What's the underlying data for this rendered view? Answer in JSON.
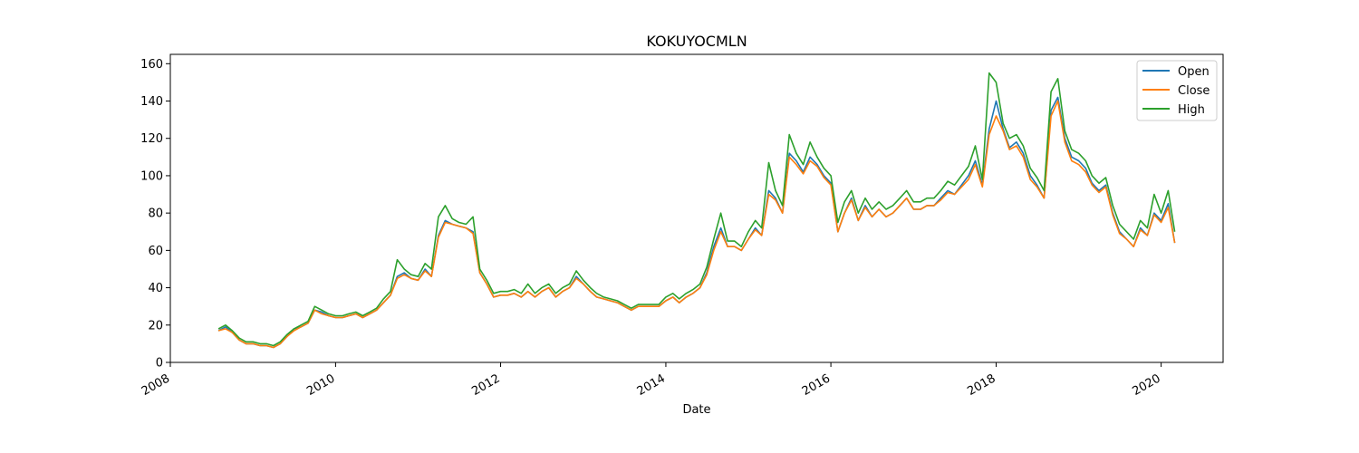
{
  "chart_data": {
    "type": "line",
    "title": "KOKUYOCMLN",
    "xlabel": "Date",
    "ylabel": "",
    "xlim": [
      "2008-01-01",
      "2020-10-01"
    ],
    "ylim": [
      0,
      165
    ],
    "x_ticks": [
      "2008",
      "2010",
      "2012",
      "2014",
      "2016",
      "2018",
      "2020"
    ],
    "y_ticks": [
      "0",
      "20",
      "40",
      "60",
      "80",
      "100",
      "120",
      "140",
      "160"
    ],
    "grid": false,
    "legend": {
      "position": "top-right",
      "entries": [
        "Open",
        "Close",
        "High"
      ]
    },
    "colors": {
      "Open": "#1f77b4",
      "Close": "#ff7f0e",
      "High": "#2ca02c"
    },
    "x": [
      "2008-08-01",
      "2008-09-01",
      "2008-10-01",
      "2008-11-01",
      "2008-12-01",
      "2009-01-01",
      "2009-02-01",
      "2009-03-01",
      "2009-04-01",
      "2009-05-01",
      "2009-06-01",
      "2009-07-01",
      "2009-08-01",
      "2009-09-01",
      "2009-10-01",
      "2009-11-01",
      "2009-12-01",
      "2010-01-01",
      "2010-02-01",
      "2010-03-01",
      "2010-04-01",
      "2010-05-01",
      "2010-06-01",
      "2010-07-01",
      "2010-08-01",
      "2010-09-01",
      "2010-10-01",
      "2010-11-01",
      "2010-12-01",
      "2011-01-01",
      "2011-02-01",
      "2011-03-01",
      "2011-04-01",
      "2011-05-01",
      "2011-06-01",
      "2011-07-01",
      "2011-08-01",
      "2011-09-01",
      "2011-10-01",
      "2011-11-01",
      "2011-12-01",
      "2012-01-01",
      "2012-02-01",
      "2012-03-01",
      "2012-04-01",
      "2012-05-01",
      "2012-06-01",
      "2012-07-01",
      "2012-08-01",
      "2012-09-01",
      "2012-10-01",
      "2012-11-01",
      "2012-12-01",
      "2013-01-01",
      "2013-02-01",
      "2013-03-01",
      "2013-04-01",
      "2013-05-01",
      "2013-06-01",
      "2013-07-01",
      "2013-08-01",
      "2013-09-01",
      "2013-10-01",
      "2013-11-01",
      "2013-12-01",
      "2014-01-01",
      "2014-02-01",
      "2014-03-01",
      "2014-04-01",
      "2014-05-01",
      "2014-06-01",
      "2014-07-01",
      "2014-08-01",
      "2014-09-01",
      "2014-10-01",
      "2014-11-01",
      "2014-12-01",
      "2015-01-01",
      "2015-02-01",
      "2015-03-01",
      "2015-04-01",
      "2015-05-01",
      "2015-06-01",
      "2015-07-01",
      "2015-08-01",
      "2015-09-01",
      "2015-10-01",
      "2015-11-01",
      "2015-12-01",
      "2016-01-01",
      "2016-02-01",
      "2016-03-01",
      "2016-04-01",
      "2016-05-01",
      "2016-06-01",
      "2016-07-01",
      "2016-08-01",
      "2016-09-01",
      "2016-10-01",
      "2016-11-01",
      "2016-12-01",
      "2017-01-01",
      "2017-02-01",
      "2017-03-01",
      "2017-04-01",
      "2017-05-01",
      "2017-06-01",
      "2017-07-01",
      "2017-08-01",
      "2017-09-01",
      "2017-10-01",
      "2017-11-01",
      "2017-12-01",
      "2018-01-01",
      "2018-02-01",
      "2018-03-01",
      "2018-04-01",
      "2018-05-01",
      "2018-06-01",
      "2018-07-01",
      "2018-08-01",
      "2018-09-01",
      "2018-10-01",
      "2018-11-01",
      "2018-12-01",
      "2019-01-01",
      "2019-02-01",
      "2019-03-01",
      "2019-04-01",
      "2019-05-01",
      "2019-06-01",
      "2019-07-01",
      "2019-08-01",
      "2019-09-01",
      "2019-10-01",
      "2019-11-01",
      "2019-12-01",
      "2020-01-01",
      "2020-02-01",
      "2020-03-01"
    ],
    "series": [
      {
        "name": "Open",
        "values": [
          17,
          19,
          16,
          12,
          10,
          10,
          9,
          9,
          8,
          10,
          14,
          18,
          19,
          21,
          28,
          27,
          25,
          24,
          24,
          25,
          26,
          24,
          26,
          28,
          32,
          36,
          46,
          48,
          45,
          44,
          50,
          46,
          68,
          76,
          74,
          73,
          72,
          70,
          48,
          42,
          35,
          36,
          36,
          37,
          35,
          38,
          35,
          38,
          40,
          35,
          38,
          40,
          46,
          42,
          38,
          35,
          34,
          33,
          32,
          30,
          28,
          30,
          30,
          30,
          30,
          33,
          35,
          32,
          35,
          37,
          40,
          48,
          62,
          72,
          62,
          62,
          60,
          66,
          72,
          68,
          92,
          88,
          80,
          112,
          108,
          102,
          110,
          106,
          100,
          96,
          70,
          80,
          88,
          76,
          84,
          78,
          82,
          78,
          80,
          84,
          88,
          82,
          82,
          84,
          84,
          88,
          92,
          90,
          95,
          100,
          108,
          95,
          125,
          140,
          125,
          115,
          118,
          112,
          100,
          95,
          88,
          135,
          142,
          120,
          110,
          108,
          104,
          96,
          92,
          95,
          80,
          70,
          66,
          62,
          72,
          68,
          80,
          76,
          85,
          64
        ]
      },
      {
        "name": "Close",
        "values": [
          17,
          18,
          16,
          12,
          10,
          10,
          9,
          9,
          8,
          10,
          14,
          17,
          19,
          21,
          28,
          26,
          25,
          24,
          24,
          25,
          26,
          24,
          26,
          28,
          32,
          36,
          45,
          47,
          45,
          44,
          49,
          46,
          67,
          75,
          74,
          73,
          72,
          69,
          48,
          42,
          35,
          36,
          36,
          37,
          35,
          38,
          35,
          38,
          40,
          35,
          38,
          40,
          45,
          42,
          38,
          35,
          34,
          33,
          32,
          30,
          28,
          30,
          30,
          30,
          30,
          33,
          35,
          32,
          35,
          37,
          40,
          47,
          60,
          70,
          62,
          62,
          60,
          66,
          71,
          68,
          90,
          87,
          80,
          110,
          106,
          101,
          108,
          105,
          99,
          95,
          70,
          80,
          87,
          76,
          83,
          78,
          82,
          78,
          80,
          84,
          88,
          82,
          82,
          84,
          84,
          87,
          91,
          90,
          94,
          98,
          106,
          94,
          122,
          132,
          124,
          114,
          116,
          110,
          98,
          94,
          88,
          132,
          140,
          118,
          108,
          106,
          102,
          95,
          91,
          94,
          79,
          69,
          66,
          62,
          71,
          68,
          79,
          75,
          83,
          64
        ]
      },
      {
        "name": "High",
        "values": [
          18,
          20,
          17,
          13,
          11,
          11,
          10,
          10,
          9,
          11,
          15,
          18,
          20,
          22,
          30,
          28,
          26,
          25,
          25,
          26,
          27,
          25,
          27,
          29,
          34,
          38,
          55,
          50,
          47,
          46,
          53,
          50,
          78,
          84,
          77,
          75,
          74,
          78,
          50,
          44,
          37,
          38,
          38,
          39,
          37,
          42,
          37,
          40,
          42,
          37,
          40,
          42,
          49,
          44,
          40,
          37,
          35,
          34,
          33,
          31,
          29,
          31,
          31,
          31,
          31,
          35,
          37,
          34,
          37,
          39,
          42,
          51,
          66,
          80,
          65,
          65,
          62,
          70,
          76,
          72,
          107,
          92,
          84,
          122,
          112,
          106,
          118,
          110,
          104,
          100,
          75,
          86,
          92,
          80,
          88,
          82,
          86,
          82,
          84,
          88,
          92,
          86,
          86,
          88,
          88,
          92,
          97,
          95,
          100,
          105,
          116,
          98,
          155,
          150,
          128,
          120,
          122,
          116,
          104,
          99,
          92,
          145,
          152,
          124,
          114,
          112,
          108,
          100,
          96,
          99,
          84,
          74,
          70,
          66,
          76,
          72,
          90,
          80,
          92,
          70
        ]
      }
    ]
  }
}
